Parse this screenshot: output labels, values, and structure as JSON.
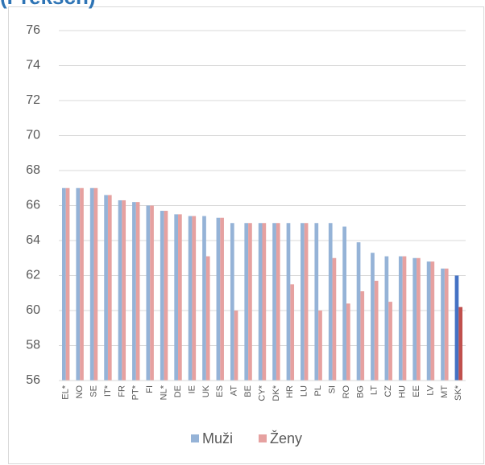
{
  "chart_data": {
    "type": "bar",
    "title": "(Preksch)",
    "categories": [
      "EL*",
      "NO",
      "SE",
      "IT*",
      "FR",
      "PT*",
      "FI",
      "NL*",
      "DE",
      "IE",
      "UK",
      "ES",
      "AT",
      "BE",
      "CY*",
      "DK*",
      "HR",
      "LU",
      "PL",
      "SI",
      "RO",
      "BG",
      "LT",
      "CZ",
      "HU",
      "EE",
      "LV",
      "MT",
      "SK*"
    ],
    "series": [
      {
        "name": "Muži",
        "color": "#95b3d7",
        "highlight_color": "#4472c4",
        "values": [
          67,
          67,
          67,
          66.6,
          66.3,
          66.2,
          66,
          65.7,
          65.5,
          65.4,
          65.4,
          65.3,
          65,
          65,
          65,
          65,
          65,
          65,
          65,
          65,
          64.8,
          63.9,
          63.3,
          63.1,
          63.1,
          63,
          62.8,
          62.4,
          62
        ]
      },
      {
        "name": "Ženy",
        "color": "#e6a1a0",
        "highlight_color": "#c0504d",
        "values": [
          67,
          67,
          67,
          66.6,
          66.3,
          66.2,
          66,
          65.7,
          65.5,
          65.4,
          63.1,
          65.3,
          60,
          65,
          65,
          65,
          61.5,
          65,
          60,
          63,
          60.4,
          61.1,
          61.7,
          60.5,
          63.1,
          63,
          62.8,
          62.4,
          60.2
        ]
      }
    ],
    "highlight_category": "SK*",
    "ylim": [
      56,
      76
    ],
    "yticks": [
      56,
      58,
      60,
      62,
      64,
      66,
      68,
      70,
      72,
      74,
      76
    ],
    "grid": true,
    "legend": "bottom"
  }
}
